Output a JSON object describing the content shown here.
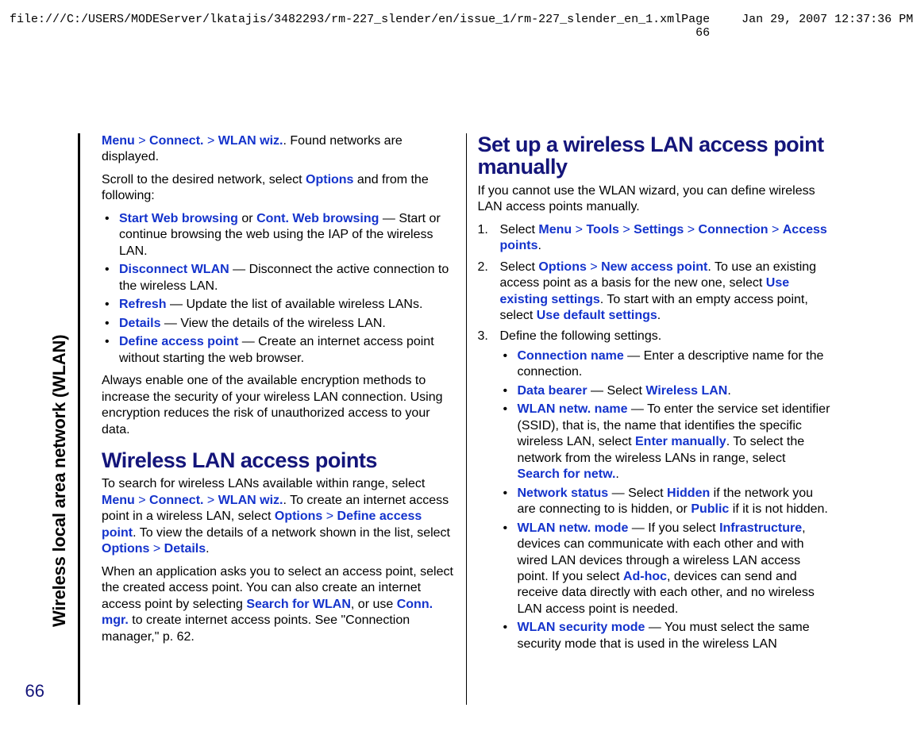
{
  "header": {
    "path": "file:///C:/USERS/MODEServer/lkatajis/3482293/rm-227_slender/en/issue_1/rm-227_slender_en_1.xml",
    "pageinfo": "Page 66",
    "timestamp": "Jan 29, 2007 12:37:36 PM"
  },
  "side_tab": "Wireless local area network (WLAN)",
  "page_number": "66",
  "colors": {
    "link": "#1433cc",
    "heading": "#14157a"
  },
  "left": {
    "p1a": "Menu",
    "p1b": "Connect.",
    "p1c": "WLAN wiz.",
    "p1d": ". Found networks are displayed.",
    "p2a": "Scroll to the desired network, select ",
    "p2b": "Options",
    "p2c": " and from the following:",
    "bul1a": "Start Web browsing",
    "bul1b": " or ",
    "bul1c": "Cont. Web browsing",
    "bul1d": " — Start or continue browsing the web using the IAP of the wireless LAN.",
    "bul2a": "Disconnect WLAN",
    "bul2b": " — Disconnect the active connection to the wireless LAN.",
    "bul3a": "Refresh",
    "bul3b": " — Update the list of available wireless LANs.",
    "bul4a": "Details",
    "bul4b": " — View the details of the wireless LAN.",
    "bul5a": "Define access point",
    "bul5b": " — Create an internet access point without starting the web browser.",
    "p3": "Always enable one of the available encryption methods to increase the security of your wireless LAN connection. Using encryption reduces the risk of unauthorized access to your data.",
    "h2": "Wireless LAN access points",
    "p4a": "To search for wireless LANs available within range, select ",
    "p4b": "Menu",
    "p4c": "Connect.",
    "p4d": "WLAN wiz.",
    "p4e": ". To create an internet access point in a wireless LAN, select ",
    "p4f": "Options",
    "p4g": "Define access point",
    "p4h": ". To view the details of a network shown in the list, select ",
    "p4i": "Options",
    "p4j": "Details",
    "p4k": ".",
    "p5a": "When an application asks you to select an access point, select the created access point. You can also create an internet access point by selecting ",
    "p5b": "Search for WLAN",
    "p5c": ", or use ",
    "p5d": "Conn. mgr.",
    "p5e": " to create internet access points. See \"Connection manager,\" p. 62."
  },
  "right": {
    "h2": "Set up a wireless LAN access point manually",
    "intro": "If you cannot use the WLAN wizard, you can define wireless LAN access points manually.",
    "s1a": "Select ",
    "s1b": "Menu",
    "s1c": "Tools",
    "s1d": "Settings",
    "s1e": "Connection",
    "s1f": "Access points",
    "s1g": ".",
    "s2a": "Select ",
    "s2b": "Options",
    "s2c": "New access point",
    "s2d": ". To use an existing access point as a basis for the new one, select ",
    "s2e": "Use existing settings",
    "s2f": ". To start with an empty access point, select ",
    "s2g": "Use default settings",
    "s2h": ".",
    "s3": "Define the following settings.",
    "b1a": "Connection name",
    "b1b": " — Enter a descriptive name for the connection.",
    "b2a": "Data bearer",
    "b2b": " — Select ",
    "b2c": "Wireless LAN",
    "b2d": ".",
    "b3a": "WLAN netw. name",
    "b3b": " — To enter the service set identifier (SSID), that is, the name that identifies the specific wireless LAN, select ",
    "b3c": "Enter manually",
    "b3d": ". To select the network from the wireless LANs in range, select ",
    "b3e": "Search for netw.",
    "b3f": ".",
    "b4a": "Network status",
    "b4b": " — Select ",
    "b4c": "Hidden",
    "b4d": " if the network you are connecting to is hidden, or ",
    "b4e": "Public",
    "b4f": " if it is not hidden.",
    "b5a": "WLAN netw. mode",
    "b5b": " — If you select ",
    "b5c": "Infrastructure",
    "b5d": ", devices can communicate with each other and with wired LAN devices through a wireless LAN access point. If you select ",
    "b5e": "Ad-hoc",
    "b5f": ", devices can send and receive data directly with each other, and no wireless LAN access point is needed.",
    "b6a": "WLAN security mode",
    "b6b": " — You must select the same security mode that is used in the wireless LAN"
  }
}
